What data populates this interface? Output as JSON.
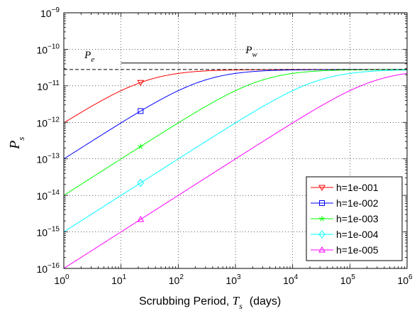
{
  "chart_data": {
    "type": "line",
    "xscale": "log",
    "yscale": "log",
    "xlim": [
      1,
      1000000
    ],
    "ylim": [
      1e-16,
      1e-09
    ],
    "grid": true,
    "legend_position": "bottom-right",
    "xlabel": {
      "text": "Scrubbing Period,",
      "symbol": "T",
      "subscript": "s",
      "unit": "(days)"
    },
    "ylabel": {
      "symbol": "P",
      "subscript": "s"
    },
    "x_tick_labels": [
      {
        "base": "10",
        "exp": "0"
      },
      {
        "base": "10",
        "exp": "1"
      },
      {
        "base": "10",
        "exp": "2"
      },
      {
        "base": "10",
        "exp": "3"
      },
      {
        "base": "10",
        "exp": "4"
      },
      {
        "base": "10",
        "exp": "5"
      },
      {
        "base": "10",
        "exp": "6"
      }
    ],
    "y_tick_labels": [
      {
        "base": "10",
        "exp": "−16"
      },
      {
        "base": "10",
        "exp": "−15"
      },
      {
        "base": "10",
        "exp": "−14"
      },
      {
        "base": "10",
        "exp": "−13"
      },
      {
        "base": "10",
        "exp": "−12"
      },
      {
        "base": "10",
        "exp": "−11"
      },
      {
        "base": "10",
        "exp": "−10"
      },
      {
        "base": "10",
        "exp": "−9"
      }
    ],
    "x_tick_values": [
      1,
      10,
      100,
      1000,
      10000,
      100000,
      1000000
    ],
    "y_tick_values": [
      1e-16,
      1e-15,
      1e-14,
      1e-13,
      1e-12,
      1e-11,
      1e-10,
      1e-09
    ],
    "saturation_value": 2.8e-11,
    "reference_lines": [
      {
        "label": "P",
        "subscript": "e",
        "y": 2.8e-11,
        "x_start": 1,
        "x_end": 1000000,
        "style": "dashed"
      },
      {
        "label": "P",
        "subscript": "w",
        "y": 4.2e-11,
        "x_start": 10,
        "x_end": 1000000,
        "style": "solid"
      }
    ],
    "marker_x": 22,
    "series": [
      {
        "name": "h=1e-001",
        "h": 0.1,
        "color": "#ff0000",
        "marker": "triangle-down"
      },
      {
        "name": "h=1e-002",
        "h": 0.01,
        "color": "#0000ff",
        "marker": "square"
      },
      {
        "name": "h=1e-003",
        "h": 0.001,
        "color": "#00ff00",
        "marker": "star"
      },
      {
        "name": "h=1e-004",
        "h": 0.0001,
        "color": "#00ffff",
        "marker": "diamond"
      },
      {
        "name": "h=1e-005",
        "h": 1e-05,
        "color": "#ff00ff",
        "marker": "triangle-up"
      }
    ]
  }
}
